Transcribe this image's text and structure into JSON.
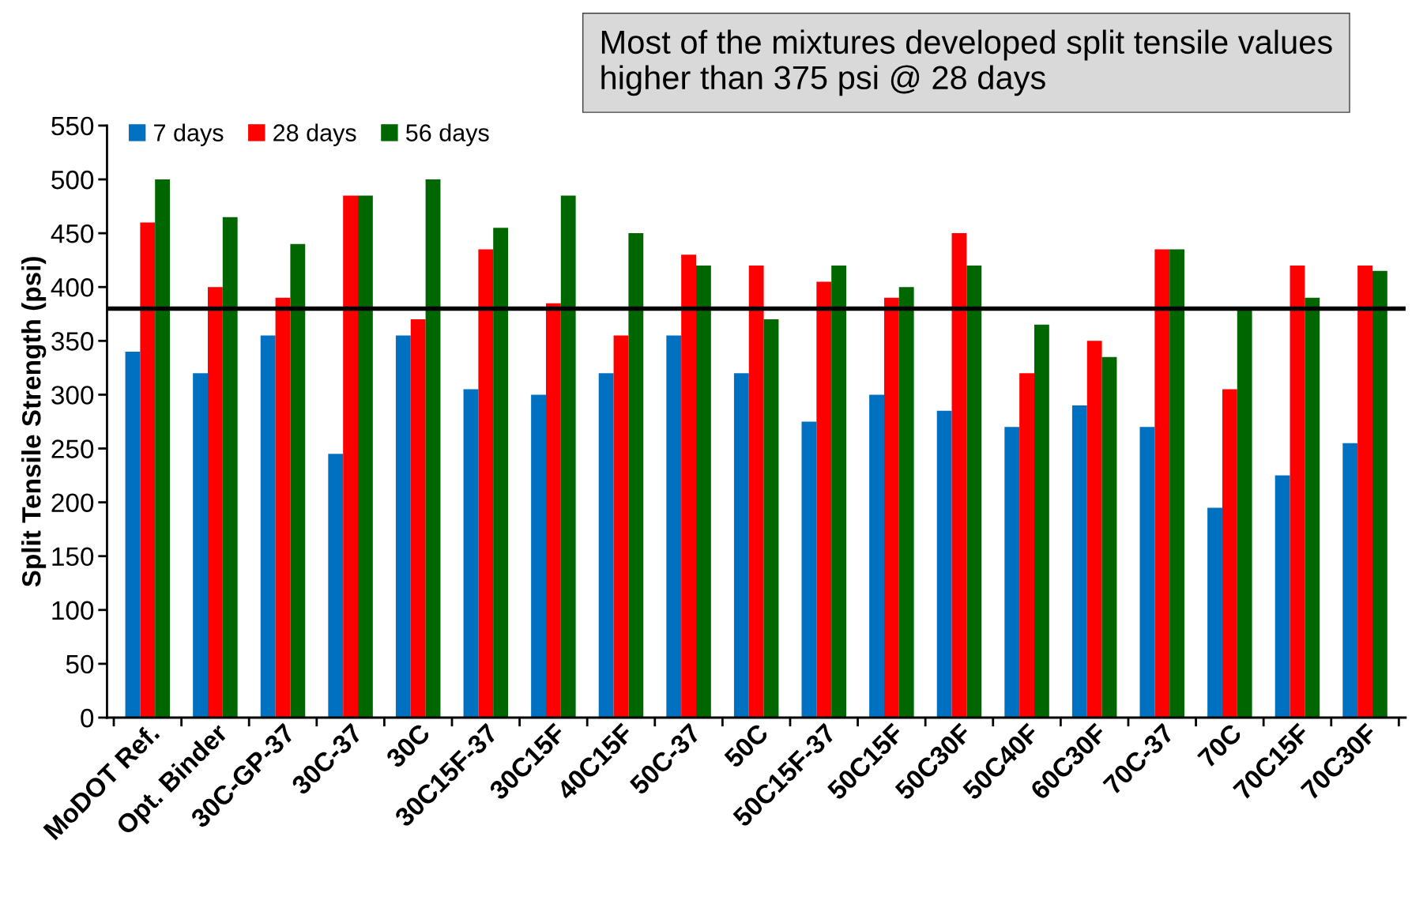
{
  "chart_data": {
    "type": "bar",
    "ylabel": "Split Tensile Strength (psi)",
    "categories": [
      "MoDOT Ref.",
      "Opt. Binder",
      "30C-GP-37",
      "30C-37",
      "30C",
      "30C15F-37",
      "30C15F",
      "40C15F",
      "50C-37",
      "50C",
      "50C15F-37",
      "50C15F",
      "50C30F",
      "50C40F",
      "60C30F",
      "70C-37",
      "70C",
      "70C15F",
      "70C30F"
    ],
    "series": [
      {
        "name": "7 days",
        "color": "#0070c0",
        "values": [
          340,
          320,
          355,
          245,
          355,
          305,
          300,
          320,
          355,
          320,
          275,
          300,
          285,
          270,
          290,
          270,
          195,
          225,
          255
        ]
      },
      {
        "name": "28 days",
        "color": "#ff0000",
        "values": [
          460,
          400,
          390,
          485,
          370,
          435,
          385,
          355,
          430,
          420,
          405,
          390,
          450,
          320,
          350,
          435,
          305,
          420,
          420
        ]
      },
      {
        "name": "56 days",
        "color": "#006600",
        "values": [
          500,
          465,
          440,
          485,
          500,
          455,
          485,
          450,
          420,
          370,
          420,
          400,
          420,
          365,
          335,
          435,
          380,
          390,
          415
        ]
      }
    ],
    "ylim": [
      0,
      550
    ],
    "yticks": [
      0,
      50,
      100,
      150,
      200,
      250,
      300,
      350,
      400,
      450,
      500,
      550
    ],
    "ref_lines": [
      {
        "axis": "y",
        "value": 380,
        "color": "#000000"
      }
    ],
    "annotations": [
      "Most of the mixtures developed split tensile values higher than 375 psi @ 28 days"
    ],
    "legend": "top left",
    "grid": false
  }
}
